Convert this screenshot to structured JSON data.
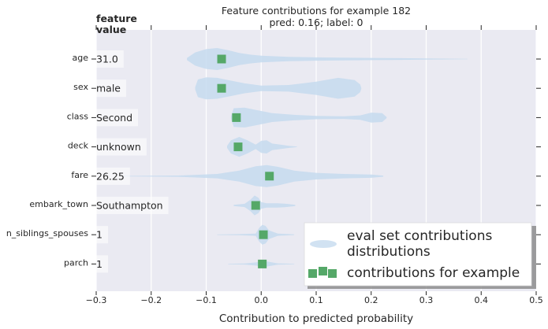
{
  "chart_data": {
    "type": "scatter",
    "title": "Feature contributions for example 182",
    "subtitle": "pred: 0.16; label: 0",
    "xlabel": "Contribution to predicted probability",
    "value_header": "feature\nvalue",
    "xlim": [
      -0.3,
      0.5
    ],
    "xticks": [
      "−0.3",
      "−0.2",
      "−0.1",
      "0.0",
      "0.1",
      "0.2",
      "0.3",
      "0.4",
      "0.5"
    ],
    "xtick_values": [
      -0.3,
      -0.2,
      -0.1,
      0.0,
      0.1,
      0.2,
      0.3,
      0.4,
      0.5
    ],
    "grid": true,
    "legend_position": "bottom-right",
    "legend": [
      {
        "label": "eval set contributions\ndistributions",
        "color": "#c6dbef"
      },
      {
        "label": "contributions for example",
        "color": "#55a868"
      }
    ],
    "features": [
      {
        "name": "age",
        "value": "31.0",
        "contribution": -0.072,
        "dist": [
          [
            -0.135,
            0.1
          ],
          [
            -0.12,
            0.6
          ],
          [
            -0.1,
            0.9
          ],
          [
            -0.08,
            1.0
          ],
          [
            -0.06,
            0.8
          ],
          [
            -0.04,
            0.55
          ],
          [
            -0.02,
            0.4
          ],
          [
            0.0,
            0.3
          ],
          [
            0.05,
            0.2
          ],
          [
            0.1,
            0.15
          ],
          [
            0.2,
            0.1
          ],
          [
            0.3,
            0.06
          ],
          [
            0.375,
            0.02
          ]
        ]
      },
      {
        "name": "sex",
        "value": "male",
        "contribution": -0.072,
        "dist": [
          [
            -0.12,
            0.1
          ],
          [
            -0.115,
            0.8
          ],
          [
            -0.1,
            1.0
          ],
          [
            -0.08,
            0.95
          ],
          [
            -0.06,
            0.75
          ],
          [
            -0.03,
            0.45
          ],
          [
            0.0,
            0.25
          ],
          [
            0.05,
            0.3
          ],
          [
            0.1,
            0.6
          ],
          [
            0.14,
            0.95
          ],
          [
            0.17,
            0.75
          ],
          [
            0.18,
            0.35
          ],
          [
            0.182,
            0.05
          ]
        ]
      },
      {
        "name": "class",
        "value": "Second",
        "contribution": -0.045,
        "dist": [
          [
            -0.055,
            0.1
          ],
          [
            -0.05,
            0.85
          ],
          [
            -0.03,
            0.9
          ],
          [
            -0.01,
            0.7
          ],
          [
            0.02,
            0.4
          ],
          [
            0.06,
            0.25
          ],
          [
            0.1,
            0.15
          ],
          [
            0.15,
            0.12
          ],
          [
            0.18,
            0.2
          ],
          [
            0.2,
            0.45
          ],
          [
            0.22,
            0.4
          ],
          [
            0.228,
            0.05
          ]
        ]
      },
      {
        "name": "deck",
        "value": "unknown",
        "contribution": -0.042,
        "dist": [
          [
            -0.062,
            0.1
          ],
          [
            -0.055,
            0.6
          ],
          [
            -0.04,
            0.9
          ],
          [
            -0.025,
            0.6
          ],
          [
            -0.01,
            0.2
          ],
          [
            0.0,
            0.55
          ],
          [
            0.01,
            0.6
          ],
          [
            0.02,
            0.3
          ],
          [
            0.035,
            0.2
          ],
          [
            0.05,
            0.1
          ],
          [
            0.065,
            0.02
          ]
        ]
      },
      {
        "name": "fare",
        "value": "26.25",
        "contribution": 0.015,
        "dist": [
          [
            -0.25,
            0.02
          ],
          [
            -0.15,
            0.06
          ],
          [
            -0.08,
            0.2
          ],
          [
            -0.04,
            0.5
          ],
          [
            -0.01,
            0.9
          ],
          [
            0.01,
            1.0
          ],
          [
            0.03,
            0.85
          ],
          [
            0.06,
            0.5
          ],
          [
            0.1,
            0.3
          ],
          [
            0.15,
            0.2
          ],
          [
            0.2,
            0.15
          ],
          [
            0.222,
            0.05
          ]
        ]
      },
      {
        "name": "embark_town",
        "value": "Southampton",
        "contribution": -0.01,
        "dist": [
          [
            -0.05,
            0.05
          ],
          [
            -0.03,
            0.15
          ],
          [
            -0.02,
            0.5
          ],
          [
            -0.012,
            0.9
          ],
          [
            -0.005,
            0.7
          ],
          [
            0.0,
            0.3
          ],
          [
            0.01,
            0.2
          ],
          [
            0.03,
            0.2
          ],
          [
            0.045,
            0.15
          ],
          [
            0.062,
            0.05
          ]
        ]
      },
      {
        "name": "n_siblings_spouses",
        "value": "1",
        "contribution": 0.004,
        "dist": [
          [
            -0.08,
            0.02
          ],
          [
            -0.04,
            0.05
          ],
          [
            -0.01,
            0.1
          ],
          [
            -0.004,
            0.6
          ],
          [
            0.002,
            0.9
          ],
          [
            0.008,
            0.8
          ],
          [
            0.014,
            0.4
          ],
          [
            0.03,
            0.1
          ],
          [
            0.06,
            0.03
          ]
        ]
      },
      {
        "name": "parch",
        "value": "1",
        "contribution": 0.002,
        "dist": [
          [
            -0.06,
            0.02
          ],
          [
            -0.03,
            0.05
          ],
          [
            -0.008,
            0.15
          ],
          [
            0.0,
            0.3
          ],
          [
            0.008,
            0.25
          ],
          [
            0.03,
            0.06
          ],
          [
            0.06,
            0.02
          ]
        ]
      }
    ]
  }
}
